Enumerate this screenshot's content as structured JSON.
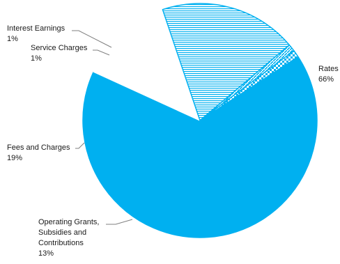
{
  "chart_data": {
    "type": "pie",
    "title": "",
    "slices": [
      {
        "label": "Rates",
        "percent_label": "66%",
        "value": 66,
        "color": "#00b0f0",
        "pattern": "solid"
      },
      {
        "label": "Operating Grants, Subsidies and Contributions",
        "label_lines": [
          "Operating Grants,",
          "Subsidies and",
          "Contributions"
        ],
        "percent_label": "13%",
        "value": 13,
        "color": "#ffffff",
        "pattern": "none"
      },
      {
        "label": "Fees and Charges",
        "percent_label": "19%",
        "value": 19,
        "color": "#00b0f0",
        "pattern": "horizontal-hatch"
      },
      {
        "label": "Service Charges",
        "percent_label": "1%",
        "value": 1,
        "color": "#00b0f0",
        "pattern": "diagonal-hatch"
      },
      {
        "label": "Interest Earnings",
        "percent_label": "1%",
        "value": 1,
        "color": "#00b0f0",
        "pattern": "checker"
      }
    ],
    "legend": "none",
    "labels": "outside-with-leader-lines"
  }
}
